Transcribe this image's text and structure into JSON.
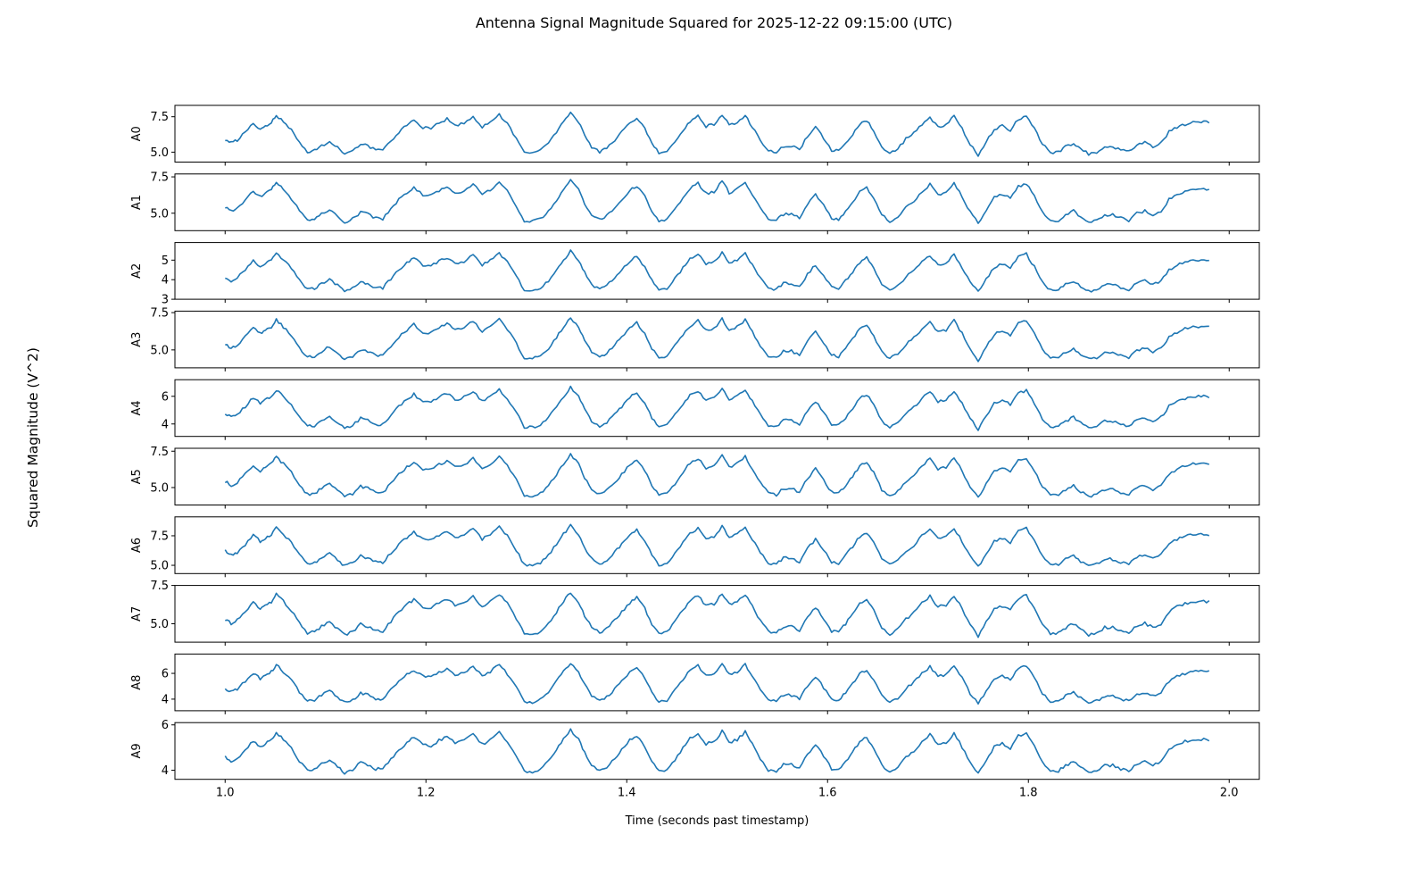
{
  "figure": {
    "title": "Antenna Signal Magnitude Squared for 2025-12-22 09:15:00 (UTC)",
    "ylabel": "Squared Magnitude (V^2)",
    "xlabel": "Time (seconds past timestamp)",
    "line_color": "#1f77b4",
    "axes_color": "#000000",
    "background": "#ffffff"
  },
  "chart_data": {
    "type": "line",
    "title": "Antenna Signal Magnitude Squared for 2025-12-22 09:15:00 (UTC)",
    "xlabel": "Time (seconds past timestamp)",
    "ylabel": "Squared Magnitude (V^2)",
    "xlim": [
      0.95,
      2.03
    ],
    "xticks": [
      1.0,
      1.2,
      1.4,
      1.6,
      1.8,
      2.0
    ],
    "xtick_labels": [
      "1.0",
      "1.2",
      "1.4",
      "1.6",
      "1.8",
      "2.0"
    ],
    "grid": false,
    "legend": null,
    "x": [
      1.0,
      1.006,
      1.012,
      1.02,
      1.028,
      1.035,
      1.04,
      1.046,
      1.051,
      1.058,
      1.066,
      1.074,
      1.082,
      1.089,
      1.096,
      1.104,
      1.112,
      1.119,
      1.127,
      1.135,
      1.142,
      1.15,
      1.157,
      1.165,
      1.173,
      1.181,
      1.188,
      1.197,
      1.205,
      1.213,
      1.221,
      1.229,
      1.238,
      1.247,
      1.256,
      1.264,
      1.273,
      1.281,
      1.29,
      1.298,
      1.306,
      1.314,
      1.322,
      1.33,
      1.337,
      1.344,
      1.352,
      1.358,
      1.365,
      1.373,
      1.38,
      1.388,
      1.395,
      1.403,
      1.41,
      1.418,
      1.425,
      1.432,
      1.44,
      1.448,
      1.456,
      1.463,
      1.471,
      1.479,
      1.487,
      1.495,
      1.502,
      1.51,
      1.518,
      1.525,
      1.533,
      1.541,
      1.549,
      1.556,
      1.564,
      1.572,
      1.58,
      1.588,
      1.596,
      1.604,
      1.611,
      1.618,
      1.625,
      1.632,
      1.639,
      1.646,
      1.654,
      1.662,
      1.67,
      1.678,
      1.686,
      1.694,
      1.702,
      1.71,
      1.718,
      1.726,
      1.734,
      1.742,
      1.75,
      1.758,
      1.766,
      1.774,
      1.782,
      1.79,
      1.798,
      1.806,
      1.814,
      1.822,
      1.83,
      1.837,
      1.845,
      1.852,
      1.86,
      1.868,
      1.876,
      1.884,
      1.892,
      1.9,
      1.908,
      1.916,
      1.924,
      1.932,
      1.94,
      1.948,
      1.956,
      1.964,
      1.972,
      1.98
    ],
    "shape_normalized": [
      0.38,
      0.3,
      0.36,
      0.52,
      0.7,
      0.58,
      0.64,
      0.72,
      0.86,
      0.72,
      0.55,
      0.3,
      0.12,
      0.14,
      0.24,
      0.33,
      0.2,
      0.08,
      0.14,
      0.28,
      0.24,
      0.16,
      0.15,
      0.34,
      0.52,
      0.66,
      0.76,
      0.62,
      0.6,
      0.7,
      0.78,
      0.65,
      0.7,
      0.84,
      0.62,
      0.72,
      0.86,
      0.68,
      0.4,
      0.1,
      0.1,
      0.14,
      0.3,
      0.52,
      0.72,
      0.9,
      0.72,
      0.46,
      0.22,
      0.12,
      0.2,
      0.36,
      0.52,
      0.7,
      0.8,
      0.58,
      0.3,
      0.1,
      0.14,
      0.34,
      0.56,
      0.74,
      0.84,
      0.64,
      0.68,
      0.88,
      0.66,
      0.72,
      0.86,
      0.62,
      0.36,
      0.14,
      0.12,
      0.24,
      0.24,
      0.16,
      0.44,
      0.62,
      0.4,
      0.16,
      0.14,
      0.3,
      0.48,
      0.68,
      0.76,
      0.54,
      0.22,
      0.1,
      0.18,
      0.38,
      0.5,
      0.68,
      0.82,
      0.62,
      0.66,
      0.84,
      0.58,
      0.28,
      0.06,
      0.32,
      0.58,
      0.64,
      0.56,
      0.78,
      0.84,
      0.58,
      0.28,
      0.1,
      0.12,
      0.22,
      0.3,
      0.18,
      0.08,
      0.12,
      0.22,
      0.22,
      0.16,
      0.12,
      0.26,
      0.3,
      0.22,
      0.3,
      0.52,
      0.62,
      0.68,
      0.72,
      0.72,
      0.72
    ],
    "series": [
      {
        "name": "A0",
        "ylim": [
          4.3,
          8.3
        ],
        "yticks": [
          5.0,
          7.5
        ],
        "ytick_labels": [
          "5.0",
          "7.5"
        ],
        "y_min": 4.6,
        "y_max": 8.1
      },
      {
        "name": "A1",
        "ylim": [
          3.8,
          7.7
        ],
        "yticks": [
          5.0,
          7.5
        ],
        "ytick_labels": [
          "5.0",
          "7.5"
        ],
        "y_min": 4.1,
        "y_max": 7.6
      },
      {
        "name": "A2",
        "ylim": [
          3.0,
          5.9
        ],
        "yticks": [
          3,
          4,
          5
        ],
        "ytick_labels": [
          "3",
          "4",
          "5"
        ],
        "y_min": 3.2,
        "y_max": 5.7
      },
      {
        "name": "A3",
        "ylim": [
          3.8,
          7.6
        ],
        "yticks": [
          5.0,
          7.5
        ],
        "ytick_labels": [
          "5.0",
          "7.5"
        ],
        "y_min": 4.1,
        "y_max": 7.5
      },
      {
        "name": "A4",
        "ylim": [
          3.1,
          7.2
        ],
        "yticks": [
          4,
          6
        ],
        "ytick_labels": [
          "4",
          "6"
        ],
        "y_min": 3.4,
        "y_max": 7.0
      },
      {
        "name": "A5",
        "ylim": [
          3.8,
          7.7
        ],
        "yticks": [
          5.0,
          7.5
        ],
        "ytick_labels": [
          "5.0",
          "7.5"
        ],
        "y_min": 4.1,
        "y_max": 7.6
      },
      {
        "name": "A6",
        "ylim": [
          4.3,
          9.1
        ],
        "yticks": [
          5.0,
          7.5
        ],
        "ytick_labels": [
          "5.0",
          "7.5"
        ],
        "y_min": 4.6,
        "y_max": 8.8
      },
      {
        "name": "A7",
        "ylim": [
          3.8,
          7.5
        ],
        "yticks": [
          5.0,
          7.5
        ],
        "ytick_labels": [
          "5.0",
          "7.5"
        ],
        "y_min": 4.0,
        "y_max": 7.4
      },
      {
        "name": "A8",
        "ylim": [
          3.1,
          7.5
        ],
        "yticks": [
          4,
          6
        ],
        "ytick_labels": [
          "4",
          "6"
        ],
        "y_min": 3.4,
        "y_max": 7.2
      },
      {
        "name": "A9",
        "ylim": [
          3.6,
          6.1
        ],
        "yticks": [
          4,
          6
        ],
        "ytick_labels": [
          "4",
          "6"
        ],
        "y_min": 3.7,
        "y_max": 6.0
      }
    ]
  }
}
